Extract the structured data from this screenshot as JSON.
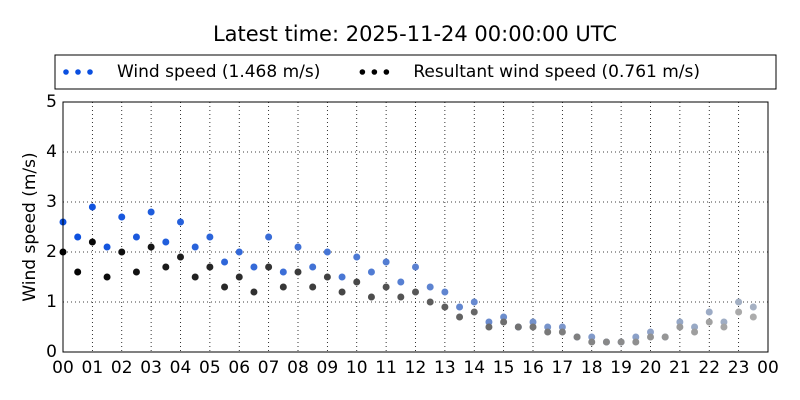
{
  "chart_data": {
    "type": "scatter",
    "title": "Latest time: 2025-11-24 00:00:00 UTC",
    "y_label": "Wind speed (m/s)",
    "x": [
      0,
      0.5,
      1,
      1.5,
      2,
      2.5,
      3,
      3.5,
      4,
      4.5,
      5,
      5.5,
      6,
      6.5,
      7,
      7.5,
      8,
      8.5,
      9,
      9.5,
      10,
      10.5,
      11,
      11.5,
      12,
      12.5,
      13,
      13.5,
      14,
      14.5,
      15,
      15.5,
      16,
      16.5,
      17,
      17.5,
      18,
      18.5,
      19,
      19.5,
      20,
      20.5,
      21,
      21.5,
      22,
      22.5,
      23,
      23.5
    ],
    "series": [
      {
        "name": "Wind speed (1.468 m/s)",
        "colors": [
          "#0a4fe0",
          "#a9b3c2"
        ],
        "values": [
          2.6,
          2.3,
          2.9,
          2.1,
          2.7,
          2.3,
          2.8,
          2.2,
          2.6,
          2.1,
          2.3,
          1.8,
          2.0,
          1.7,
          2.3,
          1.6,
          2.1,
          1.7,
          2.0,
          1.5,
          1.9,
          1.6,
          1.8,
          1.4,
          1.7,
          1.3,
          1.2,
          0.9,
          1.0,
          0.6,
          0.7,
          0.5,
          0.6,
          0.5,
          0.5,
          0.3,
          0.3,
          0.2,
          0.2,
          0.3,
          0.4,
          0.3,
          0.6,
          0.5,
          0.8,
          0.6,
          1.0,
          0.9
        ]
      },
      {
        "name": "Resultant wind speed (0.761 m/s)",
        "colors": [
          "#000000",
          "#b0b0b0"
        ],
        "values": [
          2.0,
          1.6,
          2.2,
          1.5,
          2.0,
          1.6,
          2.1,
          1.7,
          1.9,
          1.5,
          1.7,
          1.3,
          1.5,
          1.2,
          1.7,
          1.3,
          1.6,
          1.3,
          1.5,
          1.2,
          1.4,
          1.1,
          1.3,
          1.1,
          1.2,
          1.0,
          0.9,
          0.7,
          0.8,
          0.5,
          0.6,
          0.5,
          0.5,
          0.4,
          0.4,
          0.3,
          0.2,
          0.2,
          0.2,
          0.2,
          0.3,
          0.3,
          0.5,
          0.4,
          0.6,
          0.5,
          0.8,
          0.7
        ]
      }
    ],
    "xlim": [
      0,
      24
    ],
    "xticks": [
      {
        "value": 0,
        "label": "00"
      },
      {
        "value": 1,
        "label": "01"
      },
      {
        "value": 2,
        "label": "02"
      },
      {
        "value": 3,
        "label": "03"
      },
      {
        "value": 4,
        "label": "04"
      },
      {
        "value": 5,
        "label": "05"
      },
      {
        "value": 6,
        "label": "06"
      },
      {
        "value": 7,
        "label": "07"
      },
      {
        "value": 8,
        "label": "08"
      },
      {
        "value": 9,
        "label": "09"
      },
      {
        "value": 10,
        "label": "10"
      },
      {
        "value": 11,
        "label": "11"
      },
      {
        "value": 12,
        "label": "12"
      },
      {
        "value": 13,
        "label": "13"
      },
      {
        "value": 14,
        "label": "14"
      },
      {
        "value": 15,
        "label": "15"
      },
      {
        "value": 16,
        "label": "16"
      },
      {
        "value": 17,
        "label": "17"
      },
      {
        "value": 18,
        "label": "18"
      },
      {
        "value": 19,
        "label": "19"
      },
      {
        "value": 20,
        "label": "20"
      },
      {
        "value": 21,
        "label": "21"
      },
      {
        "value": 22,
        "label": "22"
      },
      {
        "value": 23,
        "label": "23"
      },
      {
        "value": 24,
        "label": "00"
      }
    ],
    "ylim": [
      0,
      5
    ],
    "yticks": [
      0,
      1,
      2,
      3,
      4,
      5
    ],
    "grid": true
  }
}
